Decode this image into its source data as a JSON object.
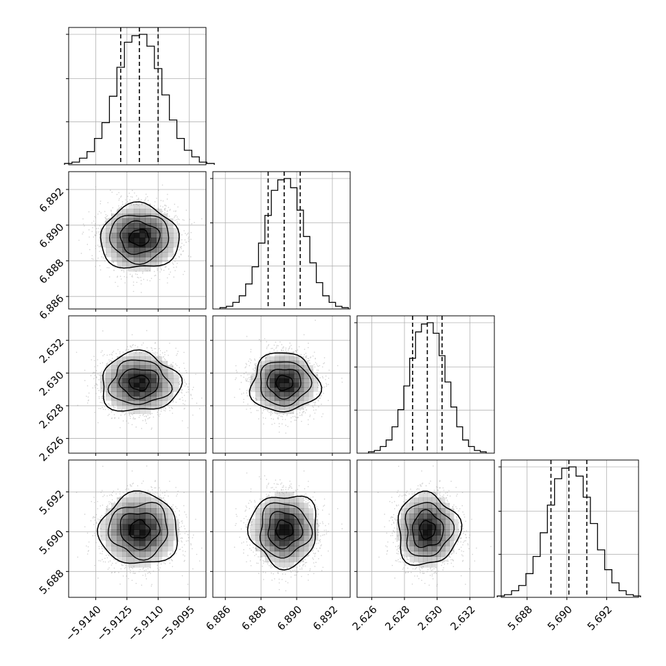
{
  "chart_data": {
    "type": "corner",
    "grid": true,
    "parameters": [
      {
        "center": -5.9119,
        "sigma": 0.0009,
        "range": [
          -5.9153,
          -5.9087
        ],
        "quantiles": [
          -5.9128,
          -5.9119,
          -5.911
        ],
        "ticks": [
          -5.914,
          -5.9125,
          -5.911,
          -5.9095
        ],
        "tick_labels": [
          "−5.9140",
          "−5.9125",
          "−5.9110",
          "−5.9095"
        ]
      },
      {
        "center": 6.8893,
        "sigma": 0.0009,
        "range": [
          6.8853,
          6.893
        ],
        "quantiles": [
          6.8884,
          6.8893,
          6.8902
        ],
        "ticks": [
          6.886,
          6.888,
          6.89,
          6.892
        ],
        "tick_labels": [
          "6.886",
          "6.888",
          "6.890",
          "6.892"
        ]
      },
      {
        "center": 2.6294,
        "sigma": 0.0009,
        "range": [
          2.6251,
          2.6335
        ],
        "quantiles": [
          2.6285,
          2.6294,
          2.6303
        ],
        "ticks": [
          2.626,
          2.628,
          2.63,
          2.632
        ],
        "tick_labels": [
          "2.626",
          "2.628",
          "2.630",
          "2.632"
        ]
      },
      {
        "center": 5.6901,
        "sigma": 0.0009,
        "range": [
          5.6867,
          5.6936
        ],
        "quantiles": [
          5.6892,
          5.6901,
          5.691
        ],
        "ticks": [
          5.688,
          5.69,
          5.692
        ],
        "tick_labels": [
          "5.688",
          "5.690",
          "5.692"
        ]
      }
    ],
    "marginal_hist_counts": [
      [
        1,
        2,
        5,
        10,
        20,
        32,
        52,
        74,
        93,
        98,
        99,
        90,
        73,
        53,
        34,
        20,
        11,
        6,
        2,
        1
      ],
      [
        1,
        2,
        5,
        10,
        19,
        32,
        50,
        71,
        90,
        98,
        99,
        92,
        75,
        55,
        35,
        20,
        10,
        5,
        2,
        1
      ],
      [
        1,
        2,
        5,
        10,
        20,
        33,
        51,
        72,
        92,
        98,
        99,
        91,
        74,
        54,
        35,
        20,
        10,
        5,
        2,
        1
      ],
      [
        1,
        2,
        5,
        9,
        18,
        31,
        49,
        70,
        90,
        98,
        99,
        92,
        76,
        56,
        36,
        21,
        11,
        5,
        2,
        1
      ]
    ],
    "contour_levels_sigma": [
      0.5,
      1.0,
      1.5,
      2.0
    ]
  },
  "colors": {
    "hist": "#000000",
    "density": "#000000",
    "points": "#9a9a9a",
    "grid": "#b0b0b0"
  }
}
